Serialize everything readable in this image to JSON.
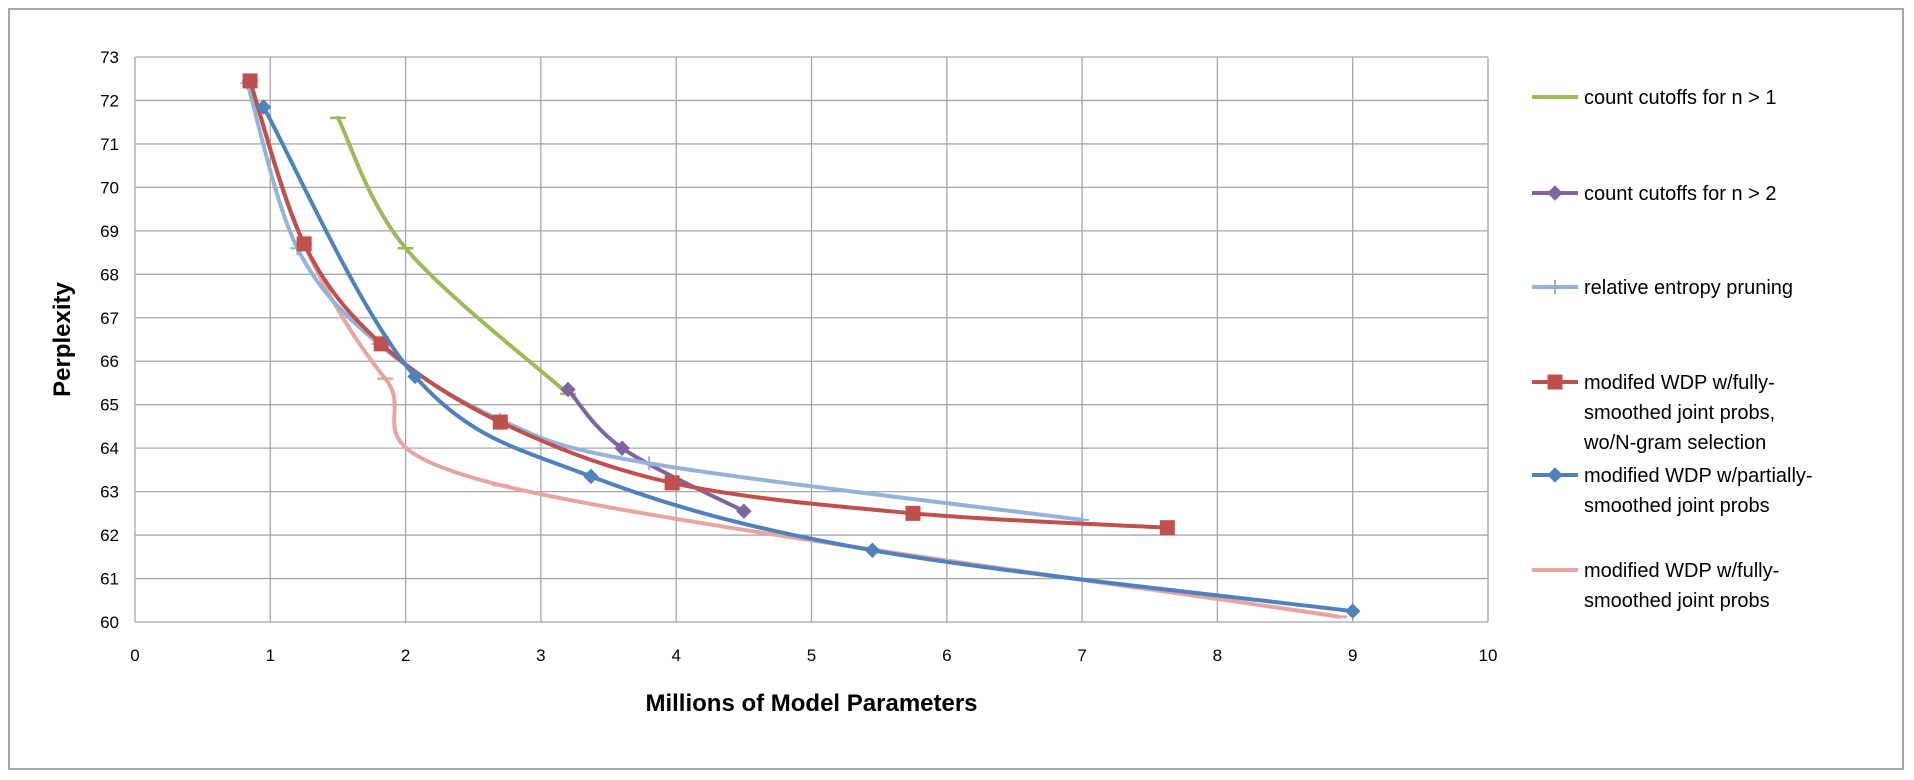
{
  "chart_data": {
    "type": "line",
    "title": "",
    "xlabel": "Millions of Model Parameters",
    "ylabel": "Perplexity",
    "xlim": [
      0,
      10
    ],
    "ylim": [
      60,
      73
    ],
    "xticks": [
      0,
      1,
      2,
      3,
      4,
      5,
      6,
      7,
      8,
      9,
      10
    ],
    "yticks": [
      60,
      61,
      62,
      63,
      64,
      65,
      66,
      67,
      68,
      69,
      70,
      71,
      72,
      73
    ],
    "grid": true,
    "legend_position": "right",
    "series": [
      {
        "name": "count cutoffs for n > 1",
        "color": "#9bbb59",
        "marker": "dash",
        "points": [
          [
            1.5,
            71.6
          ],
          [
            2.0,
            68.6
          ],
          [
            3.2,
            65.25
          ]
        ]
      },
      {
        "name": "count cutoffs for n > 2",
        "color": "#8064a2",
        "marker": "diamond",
        "points": [
          [
            3.2,
            65.35
          ],
          [
            3.6,
            64.0
          ],
          [
            4.5,
            62.55
          ]
        ]
      },
      {
        "name": "relative entropy pruning",
        "color": "#95b3d7",
        "marker": "plus",
        "points": [
          [
            0.83,
            72.4
          ],
          [
            1.2,
            68.6
          ],
          [
            1.8,
            66.4
          ],
          [
            2.7,
            64.65
          ],
          [
            3.8,
            63.65
          ],
          [
            7.0,
            62.35
          ]
        ]
      },
      {
        "name": "modifed WDP w/fully-smoothed joint probs, wo/N-gram selection",
        "color": "#c0504d",
        "marker": "square",
        "points": [
          [
            0.85,
            72.45
          ],
          [
            1.25,
            68.7
          ],
          [
            1.82,
            66.4
          ],
          [
            2.7,
            64.6
          ],
          [
            3.97,
            63.2
          ],
          [
            5.75,
            62.5
          ],
          [
            7.63,
            62.17
          ]
        ]
      },
      {
        "name": "modified WDP w/partially-smoothed joint probs",
        "color": "#4f81bd",
        "marker": "diamond",
        "points": [
          [
            0.95,
            71.85
          ],
          [
            2.07,
            65.65
          ],
          [
            3.37,
            63.35
          ],
          [
            5.45,
            61.65
          ],
          [
            9.0,
            60.25
          ]
        ]
      },
      {
        "name": "modified WDP w/fully-smoothed joint probs",
        "color": "#e6a4a2",
        "marker": "dash",
        "points": [
          [
            0.85,
            72.45
          ],
          [
            1.25,
            68.7
          ],
          [
            1.85,
            65.6
          ],
          [
            2.7,
            63.15
          ],
          [
            8.9,
            60.12
          ]
        ]
      }
    ]
  }
}
